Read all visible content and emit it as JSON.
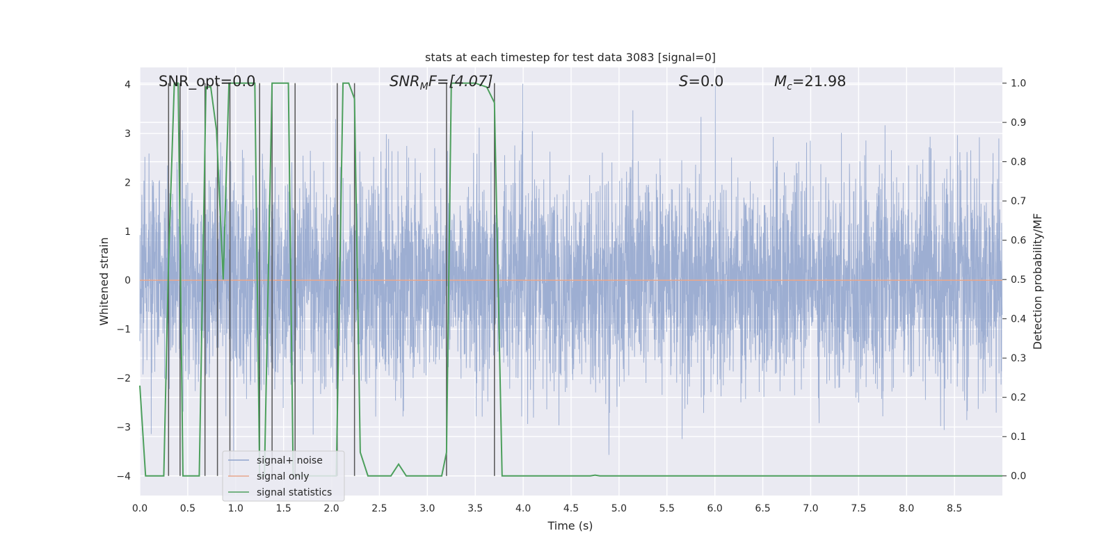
{
  "chart_data": {
    "type": "line",
    "title": "stats at each timestep for test data 3083 [signal=0]",
    "xlabel": "Time (s)",
    "ylabel": "Whitened strain",
    "ylabel_right": "Detection probability/MF",
    "xlim": [
      0,
      9
    ],
    "ylim": [
      -4.4,
      4.35
    ],
    "ylim_right": [
      -0.05,
      1.04
    ],
    "xticks": [
      0.0,
      0.5,
      1.0,
      1.5,
      2.0,
      2.5,
      3.0,
      3.5,
      4.0,
      4.5,
      5.0,
      5.5,
      6.0,
      6.5,
      7.0,
      7.5,
      8.0,
      8.5
    ],
    "xtick_labels": [
      "0.0",
      "0.5",
      "1.0",
      "1.5",
      "2.0",
      "2.5",
      "3.0",
      "3.5",
      "4.0",
      "4.5",
      "5.0",
      "5.5",
      "6.0",
      "6.5",
      "7.0",
      "7.5",
      "8.0",
      "8.5"
    ],
    "yticks": [
      -4,
      -3,
      -2,
      -1,
      0,
      1,
      2,
      3,
      4
    ],
    "ytick_labels": [
      "−4",
      "−3",
      "−2",
      "−1",
      "0",
      "1",
      "2",
      "3",
      "4"
    ],
    "yticks_right": [
      0.0,
      0.1,
      0.2,
      0.3,
      0.4,
      0.5,
      0.6,
      0.7,
      0.8,
      0.9,
      1.0
    ],
    "ytick_labels_right": [
      "0.0",
      "0.1",
      "0.2",
      "0.3",
      "0.4",
      "0.5",
      "0.6",
      "0.7",
      "0.8",
      "0.9",
      "1.0"
    ],
    "grid": true,
    "legend_placement": "lower-left",
    "annotations": {
      "snr_opt": "SNR_opt=0.0",
      "snr_mf_main": "SNR",
      "snr_mf_sub": "M",
      "snr_mf_rest": "F=[4.07]",
      "s_main": "S",
      "s_rest": "=0.0",
      "mc_main": "M",
      "mc_sub": "c",
      "mc_rest": "=21.98"
    },
    "series": [
      {
        "name": "signal+ noise",
        "color": "#8fa3cc",
        "axis": "left",
        "kind": "noise",
        "sample_rate_hz": 512,
        "seed": 3083
      },
      {
        "name": "signal only",
        "color": "#e8a68b",
        "axis": "left",
        "kind": "flat",
        "value": 0.0
      },
      {
        "name": "signal statistics",
        "color": "#4c9f5c",
        "axis": "right",
        "kind": "line",
        "x": [
          0.0,
          0.06,
          0.25,
          0.3,
          0.36,
          0.4,
          0.45,
          0.49,
          0.62,
          0.69,
          0.74,
          0.8,
          0.87,
          0.93,
          0.99,
          1.05,
          1.2,
          1.25,
          1.3,
          1.38,
          1.45,
          1.55,
          1.6,
          1.68,
          2.05,
          2.12,
          2.18,
          2.24,
          2.3,
          2.38,
          2.5,
          2.62,
          2.7,
          2.78,
          2.86,
          2.95,
          3.0,
          3.05,
          3.15,
          3.2,
          3.25,
          3.3,
          3.4,
          3.5,
          3.62,
          3.7,
          3.78,
          3.84,
          4.0,
          4.7,
          4.75,
          4.8,
          9.0
        ],
        "y": [
          0.23,
          0.0,
          0.0,
          0.55,
          1.0,
          1.0,
          0.0,
          0.0,
          0.0,
          0.99,
          0.99,
          0.88,
          0.5,
          1.0,
          1.0,
          1.0,
          1.0,
          0.0,
          0.0,
          1.0,
          1.0,
          1.0,
          0.0,
          0.0,
          0.0,
          1.0,
          1.0,
          0.96,
          0.06,
          0.0,
          0.0,
          0.0,
          0.03,
          0.0,
          0.0,
          0.0,
          0.0,
          0.0,
          0.0,
          0.06,
          1.0,
          1.0,
          1.0,
          1.0,
          0.99,
          0.95,
          0.0,
          0.0,
          0.0,
          0.0,
          0.002,
          0.0,
          0.0
        ]
      }
    ],
    "vertical_markers": {
      "color": "#555555",
      "x": [
        0.3,
        0.42,
        0.68,
        0.81,
        0.94,
        1.25,
        1.38,
        1.62,
        2.06,
        2.24,
        3.2,
        3.7
      ],
      "y_right": [
        0.0,
        1.0
      ]
    }
  }
}
